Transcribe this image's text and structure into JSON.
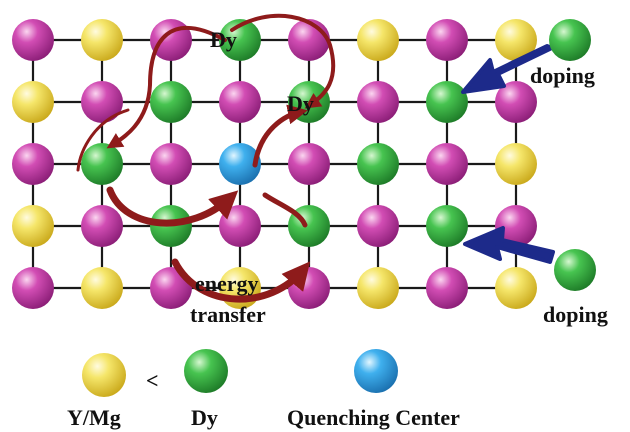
{
  "colors": {
    "grid_line": "#1a1a1a",
    "arrow_dark_red": "#8e1b1b",
    "doping_arrow": "#1d2a8a",
    "yellow_atom": "#f2e04a",
    "magenta_atom": "#cc3aab",
    "green_atom": "#3fbf48",
    "cyan_atom": "#3aa9e8"
  },
  "lattice": {
    "rows": [
      [
        "magenta",
        "yellow",
        "magenta",
        "green-dy",
        "magenta",
        "yellow",
        "magenta",
        "yellow"
      ],
      [
        "yellow",
        "magenta",
        "green",
        "magenta",
        "green-dy",
        "magenta",
        "green",
        "magenta"
      ],
      [
        "magenta",
        "green",
        "magenta",
        "cyan",
        "magenta",
        "green",
        "magenta",
        "yellow"
      ],
      [
        "yellow",
        "magenta",
        "green",
        "magenta",
        "green",
        "magenta",
        "green",
        "magenta"
      ],
      [
        "magenta",
        "yellow",
        "magenta",
        "yellow",
        "magenta",
        "yellow",
        "magenta",
        "yellow"
      ]
    ]
  },
  "labels": {
    "dy_top": "Dy",
    "dy_second": "Dy",
    "energy": "energy",
    "transfer": "transfer",
    "doping_top": "doping",
    "doping_bottom": "doping"
  },
  "legend": {
    "yellow_label": "Y/Mg",
    "comparison": "<",
    "green_label": "Dy",
    "cyan_label": "Quenching Center"
  },
  "icons": {
    "atom": "sphere-icon",
    "doping_arrow": "arrow-icon",
    "energy_arrow": "curved-arrow-icon"
  }
}
